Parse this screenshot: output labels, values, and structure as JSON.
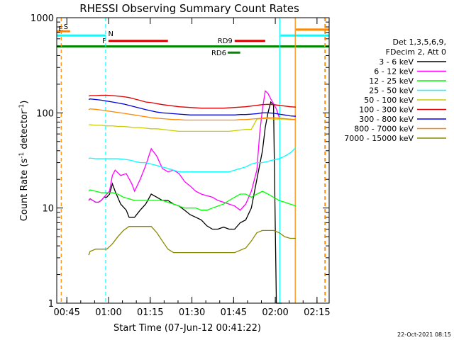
{
  "chart_data": {
    "type": "line",
    "title": "RHESSI Observing Summary Count Rates",
    "xlabel": "Start Time (07-Jun-12 00:41:22)",
    "ylabel_main": "Count Rate (s",
    "ylabel_sup1": "-1",
    "ylabel_mid": " detector",
    "ylabel_sup2": "-1",
    "ylabel_end": ")",
    "yscale": "log",
    "ylim": [
      1,
      1000
    ],
    "xlim_minutes": [
      0,
      98
    ],
    "xticks": [
      {
        "t": 3.63,
        "label": "00:45"
      },
      {
        "t": 18.63,
        "label": "01:00"
      },
      {
        "t": 33.63,
        "label": "01:15"
      },
      {
        "t": 48.63,
        "label": "01:30"
      },
      {
        "t": 63.63,
        "label": "01:45"
      },
      {
        "t": 78.63,
        "label": "02:00"
      },
      {
        "t": 93.63,
        "label": "02:15"
      }
    ],
    "yticks": [
      {
        "v": 1,
        "label": "1"
      },
      {
        "v": 10,
        "label": "10"
      },
      {
        "v": 100,
        "label": "100"
      },
      {
        "v": 1000,
        "label": "1000"
      }
    ],
    "legend_header": [
      "Det 1,3,5,6,9,",
      "FDecim 2, Att 0"
    ],
    "series": [
      {
        "name": "3 - 6 keV",
        "color": "#000000",
        "x": [
          11.5,
          12,
          13,
          14,
          15,
          16,
          17,
          18,
          19,
          20,
          21,
          23,
          25,
          26,
          28,
          30,
          32,
          34,
          36,
          38,
          40,
          42,
          44,
          46,
          48,
          50,
          52,
          54,
          56,
          58,
          60,
          62,
          64,
          66,
          68,
          70,
          72,
          74,
          75,
          76,
          77,
          78,
          79,
          80,
          81
        ],
        "y": [
          12,
          12.5,
          12,
          11.5,
          11.5,
          12,
          13,
          13,
          14,
          18,
          15,
          11,
          9.5,
          8,
          8,
          9.5,
          11,
          14,
          13,
          12,
          12,
          11,
          10.5,
          9.5,
          8.5,
          8,
          7.5,
          6.5,
          6,
          6,
          6.3,
          6,
          6,
          7,
          7.5,
          10,
          20,
          40,
          70,
          100,
          130,
          120,
          1,
          1,
          1
        ]
      },
      {
        "name": "6 - 12 keV",
        "color": "#ff00ff",
        "x": [
          11.5,
          12,
          13,
          14,
          15,
          16,
          17,
          18,
          19,
          20,
          21,
          23,
          25,
          27,
          28,
          30,
          32,
          34,
          36,
          38,
          40,
          42,
          44,
          46,
          48,
          50,
          52,
          54,
          56,
          58,
          60,
          62,
          64,
          66,
          68,
          70,
          72,
          73,
          74,
          75,
          76,
          77,
          78,
          79,
          80
        ],
        "y": [
          12,
          12.5,
          12,
          11.5,
          11.5,
          12,
          13,
          14,
          15,
          22,
          25,
          22,
          23,
          18,
          15,
          20,
          28,
          42,
          35,
          26,
          24,
          25,
          23,
          19,
          17,
          15,
          14,
          13.5,
          13,
          12,
          11.5,
          11,
          10.5,
          9.5,
          11,
          15,
          25,
          60,
          110,
          170,
          160,
          140,
          125,
          110,
          90
        ]
      },
      {
        "name": "12 - 25 keV",
        "color": "#00ff00",
        "x": [
          11.5,
          12,
          14,
          16,
          18,
          20,
          22,
          24,
          26,
          28,
          30,
          32,
          34,
          36,
          38,
          40,
          42,
          44,
          46,
          48,
          50,
          52,
          54,
          56,
          58,
          60,
          62,
          64,
          66,
          68,
          70,
          72,
          74,
          76,
          78,
          80,
          82,
          84,
          86
        ],
        "y": [
          15,
          15.5,
          15,
          14.5,
          14.5,
          14.5,
          14,
          13,
          12.5,
          12,
          12,
          12,
          12,
          12,
          12,
          11.5,
          11,
          10.5,
          10,
          10,
          10,
          9.5,
          9.5,
          10,
          10.5,
          11,
          12,
          13,
          14,
          14,
          13,
          14,
          15,
          14,
          13,
          12,
          11.5,
          11,
          10.5
        ]
      },
      {
        "name": "25 - 50 keV",
        "color": "#00ffff",
        "x": [
          11.5,
          12,
          14,
          16,
          18,
          20,
          22,
          24,
          26,
          28,
          30,
          32,
          34,
          36,
          38,
          40,
          42,
          44,
          46,
          48,
          50,
          52,
          54,
          56,
          58,
          60,
          62,
          64,
          66,
          68,
          70,
          72,
          74,
          76,
          78,
          80,
          82,
          84,
          86
        ],
        "y": [
          33,
          33.5,
          33,
          33,
          33,
          33,
          33,
          32.5,
          32,
          31,
          30,
          30,
          29,
          28,
          27,
          26,
          25,
          24,
          24,
          24,
          24,
          24,
          24,
          24,
          24,
          24,
          24,
          25,
          26,
          27,
          29,
          30,
          30,
          31,
          32,
          33,
          35,
          38,
          43
        ]
      },
      {
        "name": "50 - 100 keV",
        "color": "#cccc00",
        "x": [
          11.5,
          12,
          14,
          16,
          18,
          20,
          22,
          24,
          26,
          28,
          30,
          32,
          34,
          36,
          38,
          40,
          42,
          44,
          46,
          48,
          50,
          52,
          54,
          56,
          58,
          60,
          62,
          64,
          66,
          68,
          70,
          72,
          74,
          76,
          78,
          80,
          82,
          84,
          86
        ],
        "y": [
          75,
          75,
          74,
          74,
          73,
          73,
          72,
          72,
          71,
          70,
          70,
          69,
          68,
          68,
          67,
          66,
          65,
          64,
          64,
          64,
          64,
          64,
          64,
          64,
          64,
          64,
          64,
          65,
          66,
          67,
          67,
          86,
          87,
          87,
          86,
          86,
          86,
          85,
          85
        ]
      },
      {
        "name": "100 - 300 keV",
        "color": "#dd0000",
        "x": [
          11.5,
          12,
          14,
          16,
          18,
          20,
          22,
          24,
          26,
          28,
          30,
          32,
          34,
          36,
          38,
          40,
          42,
          44,
          46,
          48,
          50,
          52,
          54,
          56,
          58,
          60,
          62,
          64,
          66,
          68,
          70,
          72,
          74,
          76,
          78,
          80,
          82,
          84,
          86
        ],
        "y": [
          150,
          152,
          152,
          153,
          153,
          152,
          150,
          148,
          145,
          140,
          135,
          130,
          128,
          125,
          122,
          120,
          118,
          116,
          115,
          114,
          113,
          112,
          112,
          112,
          112,
          112,
          113,
          114,
          115,
          116,
          118,
          120,
          122,
          123,
          122,
          120,
          118,
          116,
          115
        ]
      },
      {
        "name": "300 - 800 keV",
        "color": "#0000dd",
        "x": [
          11.5,
          12,
          14,
          16,
          18,
          20,
          22,
          24,
          26,
          28,
          30,
          32,
          34,
          36,
          38,
          40,
          42,
          44,
          46,
          48,
          50,
          52,
          54,
          56,
          58,
          60,
          62,
          64,
          66,
          68,
          70,
          72,
          74,
          76,
          78,
          80,
          82,
          84,
          86
        ],
        "y": [
          138,
          140,
          138,
          136,
          133,
          130,
          127,
          124,
          120,
          116,
          112,
          108,
          105,
          102,
          100,
          99,
          98,
          97,
          96,
          95,
          95,
          95,
          95,
          95,
          95,
          95,
          95,
          95,
          96,
          96,
          97,
          98,
          100,
          100,
          99,
          97,
          95,
          93,
          92
        ]
      },
      {
        "name": "800 - 7000 keV",
        "color": "#ff8800",
        "x": [
          11.5,
          12,
          14,
          16,
          18,
          20,
          22,
          24,
          26,
          28,
          30,
          32,
          34,
          36,
          38,
          40,
          42,
          44,
          46,
          48,
          50,
          52,
          54,
          56,
          58,
          60,
          62,
          64,
          66,
          68,
          70,
          72,
          74,
          76,
          78,
          80,
          82,
          84,
          86
        ],
        "y": [
          108,
          110,
          109,
          107,
          105,
          103,
          101,
          99,
          97,
          95,
          93,
          91,
          89,
          88,
          87,
          86,
          85,
          85,
          84,
          84,
          84,
          84,
          84,
          84,
          84,
          84,
          84,
          84,
          85,
          85,
          86,
          87,
          88,
          89,
          89,
          88,
          87,
          86,
          85
        ]
      },
      {
        "name": "7000 - 15000 keV",
        "color": "#888800",
        "x": [
          11.5,
          12,
          14,
          16,
          18,
          20,
          22,
          24,
          26,
          28,
          30,
          32,
          34,
          36,
          38,
          40,
          42,
          44,
          46,
          48,
          50,
          52,
          54,
          56,
          58,
          60,
          62,
          64,
          66,
          68,
          70,
          72,
          74,
          76,
          78,
          80,
          82,
          84,
          86
        ],
        "y": [
          3.2,
          3.5,
          3.7,
          3.7,
          3.7,
          4.2,
          5,
          5.8,
          6.4,
          6.4,
          6.4,
          6.4,
          6.4,
          5.5,
          4.5,
          3.7,
          3.4,
          3.4,
          3.4,
          3.4,
          3.4,
          3.4,
          3.4,
          3.4,
          3.4,
          3.4,
          3.4,
          3.4,
          3.6,
          3.8,
          4.5,
          5.5,
          5.8,
          5.8,
          5.8,
          5.5,
          5,
          4.8,
          4.8
        ]
      }
    ],
    "flag_bars": [
      {
        "label": "",
        "color": "#008800",
        "t0": 0,
        "t1": 98,
        "level": 500
      },
      {
        "label": "",
        "color": "#00ffff",
        "t0": 0,
        "t1": 17.6,
        "level": 650
      },
      {
        "label": "",
        "color": "#ff8800",
        "t0": 0,
        "t1": 4.8,
        "level": 720
      },
      {
        "label": "F",
        "color": "#dd0000",
        "t0": 18.6,
        "t1": 40,
        "level": 570
      },
      {
        "label": "RD6",
        "color": "#008800",
        "t0": 61.5,
        "t1": 66,
        "level": 430
      },
      {
        "label": "RD9",
        "color": "#dd0000",
        "t0": 64,
        "t1": 75,
        "level": 570
      },
      {
        "label": "",
        "color": "#00ffff",
        "t0": 80.5,
        "t1": 98,
        "level": 650
      },
      {
        "label": "",
        "color": "#ff8800",
        "t0": 86,
        "t1": 98,
        "level": 750
      }
    ],
    "vlines": [
      {
        "t": 1.6,
        "color": "#ff8800",
        "style": "dashed"
      },
      {
        "t": 17.6,
        "color": "#00ffff",
        "style": "dashed"
      },
      {
        "t": 80.2,
        "color": "#00ffff",
        "style": "solid"
      },
      {
        "t": 85.8,
        "color": "#ff8800",
        "style": "solid"
      },
      {
        "t": 96.4,
        "color": "#00ffff",
        "style": "dashed"
      },
      {
        "t": 96.6,
        "color": "#ff8800",
        "style": "dashed"
      }
    ],
    "markers": [
      {
        "label": "S",
        "color": "#ff8800"
      },
      {
        "label": "E",
        "color": "#ff8800"
      },
      {
        "label": "N",
        "color": "#00ffff"
      }
    ],
    "date_stamp": "22-Oct-2021 08:15"
  }
}
